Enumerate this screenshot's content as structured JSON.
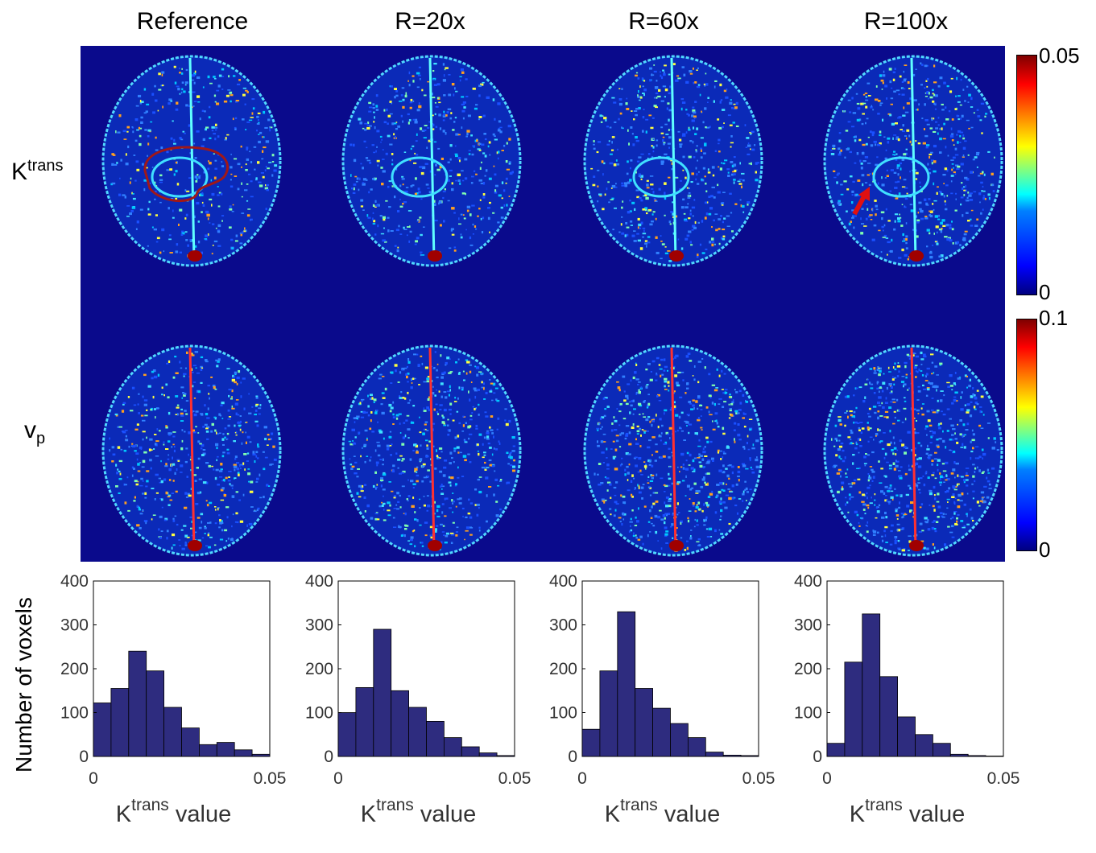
{
  "columns": [
    "Reference",
    "R=20x",
    "R=60x",
    "R=100x"
  ],
  "rows": {
    "ktrans": {
      "base": "K",
      "sup": "trans"
    },
    "vp": {
      "base": "v",
      "sub": "p"
    }
  },
  "colorbars": [
    {
      "max_label": "0.05",
      "min_label": "0"
    },
    {
      "max_label": "0.1",
      "min_label": "0"
    }
  ],
  "colors": {
    "background": "#0a0a8c",
    "histogram_bar": "#2e2c7f",
    "roi": "#a01818",
    "arrow": "#e01010"
  },
  "chart_data": [
    {
      "type": "bar",
      "title": "Reference",
      "bin_edges": [
        0,
        0.005,
        0.01,
        0.015,
        0.02,
        0.025,
        0.03,
        0.035,
        0.04,
        0.045,
        0.05
      ],
      "values": [
        122,
        155,
        240,
        195,
        112,
        65,
        27,
        32,
        15,
        5
      ],
      "xlabel": {
        "base": "K",
        "sup": "trans",
        "rest": " value"
      },
      "ylabel": "Number of voxels",
      "xlim": [
        0,
        0.05
      ],
      "ylim": [
        0,
        400
      ],
      "xticks": [
        "0",
        "0.05"
      ],
      "yticks": [
        "0",
        "100",
        "200",
        "300",
        "400"
      ]
    },
    {
      "type": "bar",
      "title": "R=20x",
      "bin_edges": [
        0,
        0.005,
        0.01,
        0.015,
        0.02,
        0.025,
        0.03,
        0.035,
        0.04,
        0.045,
        0.05
      ],
      "values": [
        100,
        157,
        290,
        150,
        112,
        80,
        43,
        22,
        8,
        2
      ],
      "xlabel": {
        "base": "K",
        "sup": "trans",
        "rest": " value"
      },
      "ylabel": "",
      "xlim": [
        0,
        0.05
      ],
      "ylim": [
        0,
        400
      ],
      "xticks": [
        "0",
        "0.05"
      ],
      "yticks": [
        "0",
        "100",
        "200",
        "300",
        "400"
      ]
    },
    {
      "type": "bar",
      "title": "R=60x",
      "bin_edges": [
        0,
        0.005,
        0.01,
        0.015,
        0.02,
        0.025,
        0.03,
        0.035,
        0.04,
        0.045,
        0.05
      ],
      "values": [
        62,
        195,
        330,
        155,
        110,
        75,
        43,
        10,
        3,
        2
      ],
      "xlabel": {
        "base": "K",
        "sup": "trans",
        "rest": " value"
      },
      "ylabel": "",
      "xlim": [
        0,
        0.05
      ],
      "ylim": [
        0,
        400
      ],
      "xticks": [
        "0",
        "0.05"
      ],
      "yticks": [
        "0",
        "100",
        "200",
        "300",
        "400"
      ]
    },
    {
      "type": "bar",
      "title": "R=100x",
      "bin_edges": [
        0,
        0.005,
        0.01,
        0.015,
        0.02,
        0.025,
        0.03,
        0.035,
        0.04,
        0.045,
        0.05
      ],
      "values": [
        30,
        215,
        325,
        182,
        90,
        50,
        30,
        5,
        2,
        1
      ],
      "xlabel": {
        "base": "K",
        "sup": "trans",
        "rest": " value"
      },
      "ylabel": "",
      "xlim": [
        0,
        0.05
      ],
      "ylim": [
        0,
        400
      ],
      "xticks": [
        "0",
        "0.05"
      ],
      "yticks": [
        "0",
        "100",
        "200",
        "300",
        "400"
      ]
    }
  ]
}
